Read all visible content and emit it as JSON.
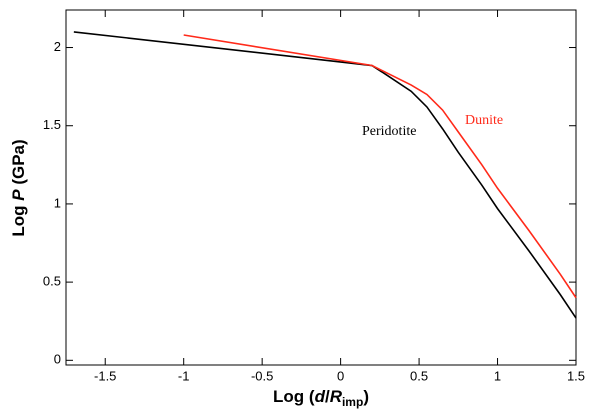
{
  "chart_data": {
    "type": "line",
    "x_label": {
      "parts": [
        "Log (",
        "d",
        "/",
        "R",
        "imp",
        ")"
      ]
    },
    "y_label": {
      "parts": [
        "Log ",
        "P",
        " (GPa)"
      ]
    },
    "xlim": [
      -1.75,
      1.5
    ],
    "ylim": [
      -0.03,
      2.24
    ],
    "xticks": [
      -1.5,
      -1,
      -0.5,
      0,
      0.5,
      1,
      1.5
    ],
    "yticks": [
      0,
      0.5,
      1,
      1.5,
      2
    ],
    "series": [
      {
        "name": "Peridotite",
        "color": "#000000",
        "x": [
          -1.7,
          0.2,
          0.3,
          0.45,
          0.55,
          0.65,
          0.75,
          0.9,
          1.0,
          1.2,
          1.4,
          1.5
        ],
        "values": [
          2.1,
          1.885,
          1.82,
          1.72,
          1.62,
          1.48,
          1.33,
          1.12,
          0.97,
          0.7,
          0.42,
          0.27
        ]
      },
      {
        "name": "Dunite",
        "color": "#ff2a1a",
        "x": [
          -1.0,
          0.2,
          0.45,
          0.55,
          0.65,
          0.75,
          0.9,
          1.0,
          1.2,
          1.4,
          1.5
        ],
        "values": [
          2.08,
          1.885,
          1.76,
          1.7,
          1.6,
          1.46,
          1.25,
          1.1,
          0.83,
          0.55,
          0.4
        ]
      }
    ]
  }
}
